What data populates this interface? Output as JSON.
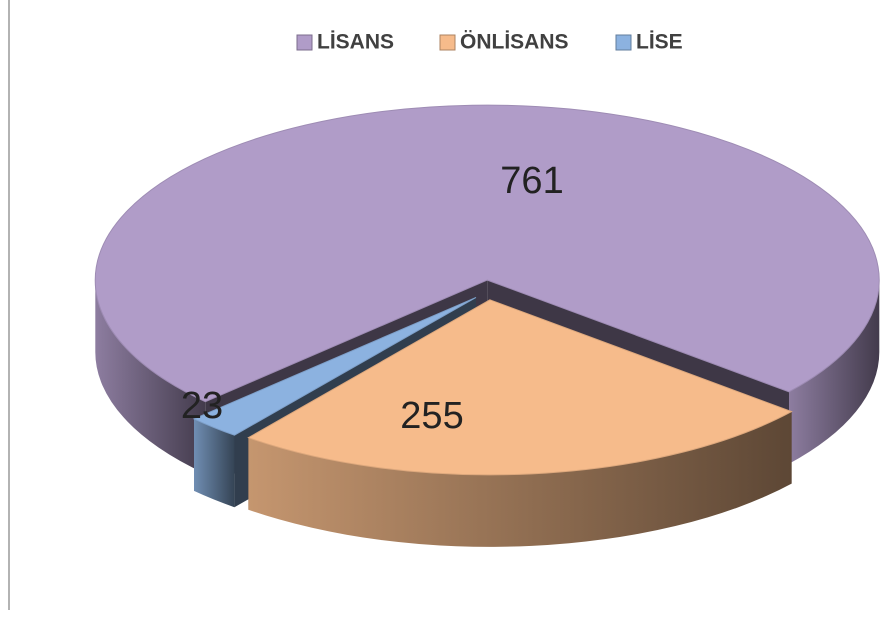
{
  "chart_data": {
    "type": "pie",
    "categories": [
      "LİSANS",
      "ÖNLİSANS",
      "LİSE"
    ],
    "values": [
      761,
      255,
      23
    ],
    "colors": [
      "#b09cc8",
      "#f6bb8b",
      "#8cb2e0"
    ],
    "legend": "top"
  }
}
